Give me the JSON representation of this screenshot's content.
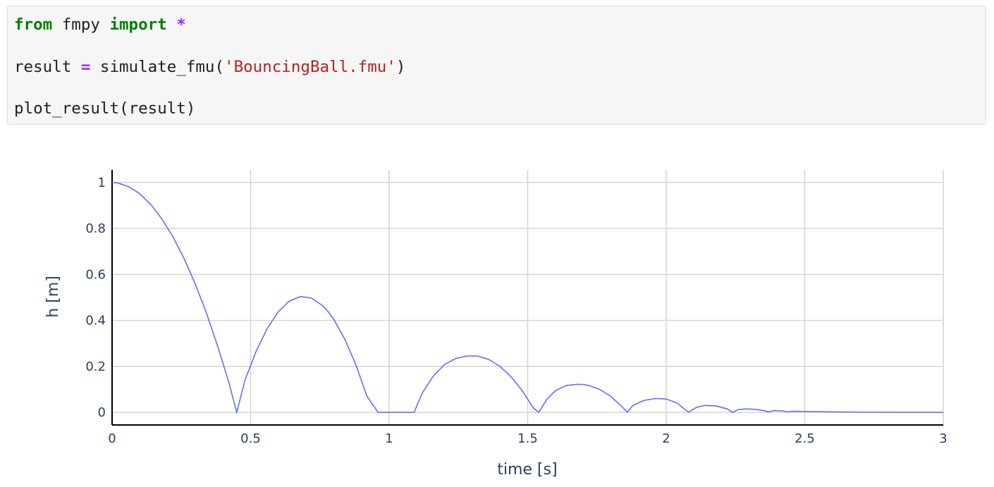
{
  "code": {
    "line1": {
      "kw_from": "from",
      "module": " fmpy ",
      "kw_import": "import",
      "star": " *"
    },
    "line2": {
      "var": "result",
      "eq": "=",
      "func": "simulate_fmu(",
      "arg": "'BouncingBall.fmu'",
      "close": ")"
    },
    "line3": {
      "call": "plot_result(result)"
    }
  },
  "chart_data": {
    "type": "line",
    "xlabel": "time [s]",
    "ylabel": "h [m]",
    "xlim": [
      0,
      3
    ],
    "ylim": [
      -0.055,
      1.055
    ],
    "x_ticks": [
      "0",
      "0.5",
      "1",
      "1.5",
      "2",
      "2.5",
      "3"
    ],
    "y_ticks": [
      "0",
      "0.2",
      "0.4",
      "0.6",
      "0.8",
      "1"
    ],
    "grid": true,
    "line_color": "#636efa",
    "series": [
      {
        "x": [
          0,
          0.02,
          0.06,
          0.1,
          0.14,
          0.18,
          0.22,
          0.26,
          0.3,
          0.34,
          0.38,
          0.42,
          0.45,
          0.48,
          0.52,
          0.56,
          0.6,
          0.64,
          0.68,
          0.72,
          0.76,
          0.78,
          0.8,
          0.84,
          0.88,
          0.92,
          0.96,
          1.0,
          1.04,
          1.08,
          1.09,
          1.12,
          1.16,
          1.2,
          1.24,
          1.28,
          1.32,
          1.36,
          1.4,
          1.44,
          1.48,
          1.52,
          1.54,
          1.57,
          1.6,
          1.64,
          1.68,
          1.7,
          1.72,
          1.76,
          1.8,
          1.84,
          1.86,
          1.88,
          1.92,
          1.96,
          2.0,
          2.04,
          2.08,
          2.11,
          2.14,
          2.18,
          2.22,
          2.24,
          2.26,
          2.29,
          2.32,
          2.35,
          2.37,
          2.39,
          2.42,
          2.44,
          2.46,
          2.49,
          2.53,
          2.6,
          2.7,
          2.8,
          3.0
        ],
        "y": [
          1.0,
          0.998,
          0.982,
          0.951,
          0.904,
          0.841,
          0.763,
          0.669,
          0.559,
          0.434,
          0.292,
          0.136,
          0.0,
          0.141,
          0.266,
          0.365,
          0.438,
          0.484,
          0.504,
          0.497,
          0.464,
          0.438,
          0.405,
          0.318,
          0.207,
          0.07,
          0.0,
          0.0,
          0.0,
          0.0,
          0.0,
          0.085,
          0.159,
          0.208,
          0.234,
          0.245,
          0.245,
          0.23,
          0.2,
          0.155,
          0.095,
          0.02,
          0.0,
          0.058,
          0.094,
          0.117,
          0.122,
          0.121,
          0.117,
          0.1,
          0.07,
          0.025,
          0.0,
          0.03,
          0.052,
          0.06,
          0.058,
          0.04,
          0.0,
          0.022,
          0.03,
          0.028,
          0.015,
          0.0,
          0.012,
          0.015,
          0.013,
          0.008,
          0.002,
          0.008,
          0.006,
          0.002,
          0.005,
          0.004,
          0.003,
          0.002,
          0.001,
          0.0005,
          0.0
        ]
      }
    ]
  }
}
